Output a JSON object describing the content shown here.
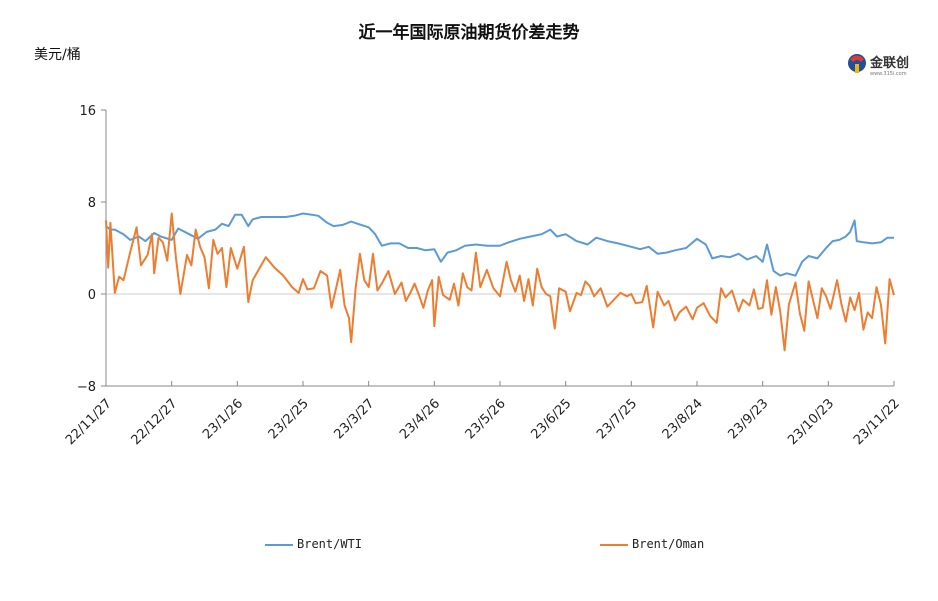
{
  "chart_data": {
    "type": "line",
    "title": "近一年国际原油期货价差走势",
    "ylabel": "美元/桶",
    "ylim": [
      -8,
      16
    ],
    "yticks": [
      {
        "value": 16,
        "label": "16"
      },
      {
        "value": 8,
        "label": "8"
      },
      {
        "value": 0,
        "label": "0"
      },
      {
        "value": -8,
        "label": "−8"
      }
    ],
    "xlim": [
      "2022-11-27",
      "2023-11-22"
    ],
    "xticks": [
      {
        "date": "2022-11-27",
        "label": "22/11/27"
      },
      {
        "date": "2022-12-27",
        "label": "22/12/27"
      },
      {
        "date": "2023-01-26",
        "label": "23/1/26"
      },
      {
        "date": "2023-02-25",
        "label": "23/2/25"
      },
      {
        "date": "2023-03-27",
        "label": "23/3/27"
      },
      {
        "date": "2023-04-26",
        "label": "23/4/26"
      },
      {
        "date": "2023-05-26",
        "label": "23/5/26"
      },
      {
        "date": "2023-06-25",
        "label": "23/6/25"
      },
      {
        "date": "2023-07-25",
        "label": "23/7/25"
      },
      {
        "date": "2023-08-24",
        "label": "23/8/24"
      },
      {
        "date": "2023-09-23",
        "label": "23/9/23"
      },
      {
        "date": "2023-10-23",
        "label": "23/10/23"
      },
      {
        "date": "2023-11-22",
        "label": "23/11/22"
      }
    ],
    "legend_position": "bottom",
    "grid": false,
    "series": [
      {
        "name": "Brent/WTI",
        "color": "#5b9bd5",
        "points": [
          [
            "2022-11-27",
            5.9
          ],
          [
            "2022-11-29",
            5.6
          ],
          [
            "2022-12-01",
            5.6
          ],
          [
            "2022-12-05",
            5.2
          ],
          [
            "2022-12-08",
            4.7
          ],
          [
            "2022-12-12",
            5.0
          ],
          [
            "2022-12-15",
            4.6
          ],
          [
            "2022-12-19",
            5.3
          ],
          [
            "2022-12-22",
            5.0
          ],
          [
            "2022-12-27",
            4.7
          ],
          [
            "2022-12-30",
            5.7
          ],
          [
            "2023-01-04",
            5.2
          ],
          [
            "2023-01-08",
            4.8
          ],
          [
            "2023-01-12",
            5.4
          ],
          [
            "2023-01-16",
            5.6
          ],
          [
            "2023-01-19",
            6.1
          ],
          [
            "2023-01-22",
            5.9
          ],
          [
            "2023-01-25",
            6.9
          ],
          [
            "2023-01-28",
            6.9
          ],
          [
            "2023-01-31",
            5.9
          ],
          [
            "2023-02-02",
            6.5
          ],
          [
            "2023-02-06",
            6.7
          ],
          [
            "2023-02-12",
            6.7
          ],
          [
            "2023-02-17",
            6.7
          ],
          [
            "2023-02-21",
            6.8
          ],
          [
            "2023-02-25",
            7.0
          ],
          [
            "2023-03-01",
            6.9
          ],
          [
            "2023-03-04",
            6.8
          ],
          [
            "2023-03-08",
            6.2
          ],
          [
            "2023-03-11",
            5.9
          ],
          [
            "2023-03-15",
            6.0
          ],
          [
            "2023-03-19",
            6.3
          ],
          [
            "2023-03-22",
            6.1
          ],
          [
            "2023-03-27",
            5.8
          ],
          [
            "2023-03-30",
            5.2
          ],
          [
            "2023-04-02",
            4.2
          ],
          [
            "2023-04-06",
            4.4
          ],
          [
            "2023-04-10",
            4.4
          ],
          [
            "2023-04-14",
            4.0
          ],
          [
            "2023-04-18",
            4.0
          ],
          [
            "2023-04-22",
            3.8
          ],
          [
            "2023-04-26",
            3.9
          ],
          [
            "2023-04-29",
            2.8
          ],
          [
            "2023-05-02",
            3.6
          ],
          [
            "2023-05-06",
            3.8
          ],
          [
            "2023-05-10",
            4.2
          ],
          [
            "2023-05-15",
            4.3
          ],
          [
            "2023-05-20",
            4.2
          ],
          [
            "2023-05-26",
            4.2
          ],
          [
            "2023-05-30",
            4.5
          ],
          [
            "2023-06-04",
            4.8
          ],
          [
            "2023-06-09",
            5.0
          ],
          [
            "2023-06-14",
            5.2
          ],
          [
            "2023-06-18",
            5.6
          ],
          [
            "2023-06-21",
            5.0
          ],
          [
            "2023-06-25",
            5.2
          ],
          [
            "2023-06-30",
            4.6
          ],
          [
            "2023-07-05",
            4.3
          ],
          [
            "2023-07-09",
            4.9
          ],
          [
            "2023-07-14",
            4.6
          ],
          [
            "2023-07-19",
            4.4
          ],
          [
            "2023-07-25",
            4.1
          ],
          [
            "2023-07-29",
            3.9
          ],
          [
            "2023-08-02",
            4.1
          ],
          [
            "2023-08-06",
            3.5
          ],
          [
            "2023-08-10",
            3.6
          ],
          [
            "2023-08-14",
            3.8
          ],
          [
            "2023-08-19",
            4.0
          ],
          [
            "2023-08-24",
            4.8
          ],
          [
            "2023-08-28",
            4.3
          ],
          [
            "2023-08-31",
            3.1
          ],
          [
            "2023-09-04",
            3.3
          ],
          [
            "2023-09-08",
            3.2
          ],
          [
            "2023-09-12",
            3.5
          ],
          [
            "2023-09-16",
            3.0
          ],
          [
            "2023-09-20",
            3.3
          ],
          [
            "2023-09-23",
            2.8
          ],
          [
            "2023-09-25",
            4.3
          ],
          [
            "2023-09-28",
            2.0
          ],
          [
            "2023-10-01",
            1.6
          ],
          [
            "2023-10-04",
            1.8
          ],
          [
            "2023-10-08",
            1.6
          ],
          [
            "2023-10-11",
            2.8
          ],
          [
            "2023-10-14",
            3.3
          ],
          [
            "2023-10-18",
            3.1
          ],
          [
            "2023-10-22",
            4.0
          ],
          [
            "2023-10-25",
            4.6
          ],
          [
            "2023-10-28",
            4.7
          ],
          [
            "2023-10-31",
            5.0
          ],
          [
            "2023-11-02",
            5.4
          ],
          [
            "2023-11-04",
            6.4
          ],
          [
            "2023-11-05",
            4.6
          ],
          [
            "2023-11-08",
            4.5
          ],
          [
            "2023-11-12",
            4.4
          ],
          [
            "2023-11-16",
            4.5
          ],
          [
            "2023-11-19",
            4.9
          ],
          [
            "2023-11-22",
            4.9
          ]
        ]
      },
      {
        "name": "Brent/Oman",
        "color": "#ed7d31",
        "points": [
          [
            "2022-11-27",
            6.4
          ],
          [
            "2022-11-28",
            2.3
          ],
          [
            "2022-11-29",
            6.2
          ],
          [
            "2022-12-01",
            0.1
          ],
          [
            "2022-12-03",
            1.5
          ],
          [
            "2022-12-05",
            1.2
          ],
          [
            "2022-12-08",
            3.6
          ],
          [
            "2022-12-11",
            5.8
          ],
          [
            "2022-12-13",
            2.5
          ],
          [
            "2022-12-16",
            3.4
          ],
          [
            "2022-12-18",
            5.2
          ],
          [
            "2022-12-19",
            1.8
          ],
          [
            "2022-12-21",
            4.9
          ],
          [
            "2022-12-23",
            4.5
          ],
          [
            "2022-12-25",
            2.9
          ],
          [
            "2022-12-27",
            7.0
          ],
          [
            "2022-12-29",
            3.1
          ],
          [
            "2022-12-31",
            0.0
          ],
          [
            "2023-01-03",
            3.4
          ],
          [
            "2023-01-05",
            2.5
          ],
          [
            "2023-01-07",
            5.6
          ],
          [
            "2023-01-09",
            4.1
          ],
          [
            "2023-01-11",
            3.2
          ],
          [
            "2023-01-13",
            0.5
          ],
          [
            "2023-01-15",
            4.7
          ],
          [
            "2023-01-17",
            3.5
          ],
          [
            "2023-01-19",
            4.0
          ],
          [
            "2023-01-21",
            0.6
          ],
          [
            "2023-01-23",
            4.0
          ],
          [
            "2023-01-26",
            2.2
          ],
          [
            "2023-01-29",
            4.1
          ],
          [
            "2023-01-31",
            -0.7
          ],
          [
            "2023-02-02",
            1.2
          ],
          [
            "2023-02-05",
            2.2
          ],
          [
            "2023-02-08",
            3.2
          ],
          [
            "2023-02-12",
            2.3
          ],
          [
            "2023-02-16",
            1.6
          ],
          [
            "2023-02-20",
            0.6
          ],
          [
            "2023-02-23",
            0.1
          ],
          [
            "2023-02-25",
            1.3
          ],
          [
            "2023-02-27",
            0.4
          ],
          [
            "2023-03-02",
            0.5
          ],
          [
            "2023-03-05",
            2.0
          ],
          [
            "2023-03-08",
            1.6
          ],
          [
            "2023-03-10",
            -1.2
          ],
          [
            "2023-03-12",
            0.4
          ],
          [
            "2023-03-14",
            2.1
          ],
          [
            "2023-03-16",
            -1.0
          ],
          [
            "2023-03-18",
            -2.1
          ],
          [
            "2023-03-19",
            -4.2
          ],
          [
            "2023-03-21",
            0.4
          ],
          [
            "2023-03-23",
            3.5
          ],
          [
            "2023-03-25",
            1.2
          ],
          [
            "2023-03-27",
            0.6
          ],
          [
            "2023-03-29",
            3.5
          ],
          [
            "2023-03-31",
            0.3
          ],
          [
            "2023-04-02",
            0.9
          ],
          [
            "2023-04-05",
            2.0
          ],
          [
            "2023-04-08",
            0.0
          ],
          [
            "2023-04-11",
            1.0
          ],
          [
            "2023-04-13",
            -0.6
          ],
          [
            "2023-04-15",
            0.1
          ],
          [
            "2023-04-17",
            0.9
          ],
          [
            "2023-04-19",
            -0.1
          ],
          [
            "2023-04-21",
            -1.2
          ],
          [
            "2023-04-23",
            0.3
          ],
          [
            "2023-04-25",
            1.2
          ],
          [
            "2023-04-26",
            -2.8
          ],
          [
            "2023-04-28",
            1.5
          ],
          [
            "2023-04-30",
            -0.1
          ],
          [
            "2023-05-03",
            -0.5
          ],
          [
            "2023-05-05",
            0.9
          ],
          [
            "2023-05-07",
            -1.0
          ],
          [
            "2023-05-09",
            1.8
          ],
          [
            "2023-05-11",
            0.6
          ],
          [
            "2023-05-13",
            0.3
          ],
          [
            "2023-05-15",
            3.6
          ],
          [
            "2023-05-17",
            0.6
          ],
          [
            "2023-05-20",
            2.1
          ],
          [
            "2023-05-23",
            0.5
          ],
          [
            "2023-05-26",
            -0.2
          ],
          [
            "2023-05-29",
            2.8
          ],
          [
            "2023-05-31",
            1.2
          ],
          [
            "2023-06-02",
            0.2
          ],
          [
            "2023-06-04",
            1.6
          ],
          [
            "2023-06-06",
            -0.6
          ],
          [
            "2023-06-08",
            1.3
          ],
          [
            "2023-06-10",
            -1.0
          ],
          [
            "2023-06-12",
            2.2
          ],
          [
            "2023-06-14",
            0.6
          ],
          [
            "2023-06-16",
            0.0
          ],
          [
            "2023-06-18",
            -0.2
          ],
          [
            "2023-06-20",
            -3.0
          ],
          [
            "2023-06-22",
            0.5
          ],
          [
            "2023-06-25",
            0.2
          ],
          [
            "2023-06-27",
            -1.5
          ],
          [
            "2023-06-30",
            0.1
          ],
          [
            "2023-07-02",
            -0.1
          ],
          [
            "2023-07-04",
            1.1
          ],
          [
            "2023-07-06",
            0.7
          ],
          [
            "2023-07-08",
            -0.2
          ],
          [
            "2023-07-11",
            0.5
          ],
          [
            "2023-07-14",
            -1.1
          ],
          [
            "2023-07-17",
            -0.5
          ],
          [
            "2023-07-20",
            0.1
          ],
          [
            "2023-07-23",
            -0.2
          ],
          [
            "2023-07-25",
            0.0
          ],
          [
            "2023-07-27",
            -0.8
          ],
          [
            "2023-07-30",
            -0.7
          ],
          [
            "2023-08-01",
            0.7
          ],
          [
            "2023-08-04",
            -2.9
          ],
          [
            "2023-08-06",
            0.2
          ],
          [
            "2023-08-09",
            -1.0
          ],
          [
            "2023-08-11",
            -0.6
          ],
          [
            "2023-08-14",
            -2.3
          ],
          [
            "2023-08-16",
            -1.6
          ],
          [
            "2023-08-19",
            -1.1
          ],
          [
            "2023-08-22",
            -2.2
          ],
          [
            "2023-08-24",
            -1.2
          ],
          [
            "2023-08-27",
            -0.8
          ],
          [
            "2023-08-30",
            -1.9
          ],
          [
            "2023-09-02",
            -2.5
          ],
          [
            "2023-09-04",
            0.5
          ],
          [
            "2023-09-06",
            -0.3
          ],
          [
            "2023-09-09",
            0.3
          ],
          [
            "2023-09-12",
            -1.5
          ],
          [
            "2023-09-14",
            -0.5
          ],
          [
            "2023-09-17",
            -1.0
          ],
          [
            "2023-09-19",
            0.4
          ],
          [
            "2023-09-21",
            -1.3
          ],
          [
            "2023-09-23",
            -1.2
          ],
          [
            "2023-09-25",
            1.2
          ],
          [
            "2023-09-27",
            -1.8
          ],
          [
            "2023-09-29",
            0.6
          ],
          [
            "2023-10-01",
            -1.5
          ],
          [
            "2023-10-03",
            -4.9
          ],
          [
            "2023-10-05",
            -0.9
          ],
          [
            "2023-10-08",
            1.0
          ],
          [
            "2023-10-10",
            -1.7
          ],
          [
            "2023-10-12",
            -3.2
          ],
          [
            "2023-10-14",
            1.1
          ],
          [
            "2023-10-16",
            -0.5
          ],
          [
            "2023-10-18",
            -2.1
          ],
          [
            "2023-10-20",
            0.5
          ],
          [
            "2023-10-22",
            -0.2
          ],
          [
            "2023-10-24",
            -1.3
          ],
          [
            "2023-10-27",
            1.2
          ],
          [
            "2023-10-29",
            -0.9
          ],
          [
            "2023-10-31",
            -2.4
          ],
          [
            "2023-11-02",
            -0.3
          ],
          [
            "2023-11-04",
            -1.4
          ],
          [
            "2023-11-06",
            0.1
          ],
          [
            "2023-11-08",
            -3.1
          ],
          [
            "2023-11-10",
            -1.6
          ],
          [
            "2023-11-12",
            -2.1
          ],
          [
            "2023-11-14",
            0.6
          ],
          [
            "2023-11-16",
            -0.9
          ],
          [
            "2023-11-18",
            -4.3
          ],
          [
            "2023-11-20",
            1.3
          ],
          [
            "2023-11-22",
            -0.1
          ]
        ]
      }
    ]
  },
  "header": {
    "title": "近一年国际原油期货价差走势",
    "unit": "美元/桶"
  },
  "logo": {
    "text": "金联创",
    "url": "www.315i.com"
  },
  "legend": {
    "items": [
      {
        "label": "Brent/WTI",
        "color": "#5b9bd5"
      },
      {
        "label": "Brent/Oman",
        "color": "#ed7d31"
      }
    ]
  }
}
